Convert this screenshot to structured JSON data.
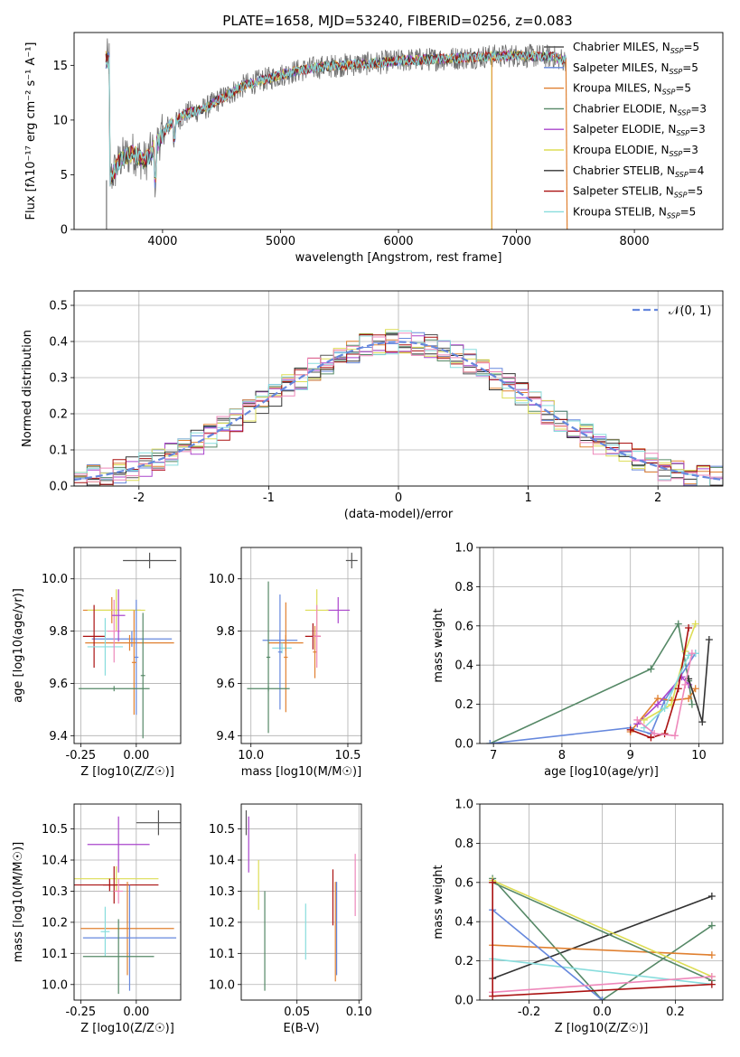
{
  "figure": {
    "title": "PLATE=1658, MJD=53240, FIBERID=0256, z=0.083"
  },
  "chart_data": [
    {
      "id": "spectrum",
      "type": "line",
      "xlabel": "wavelength [Angstrom, rest frame]",
      "ylabel": "Flux [fλ10⁻¹⁷ erg cm⁻² s⁻¹ A⁻¹]",
      "xlim": [
        3250,
        8750
      ],
      "ylim": [
        0,
        18
      ],
      "xticks": [
        4000,
        5000,
        6000,
        7000,
        8000
      ],
      "yticks": [
        0,
        5,
        10,
        15
      ],
      "grid": false,
      "legend_position": "top-right",
      "anchors": [
        [
          3550,
          4.5
        ],
        [
          3650,
          6.5
        ],
        [
          3750,
          7.0
        ],
        [
          3850,
          6.2
        ],
        [
          3950,
          7.8
        ],
        [
          4050,
          9.5
        ],
        [
          4200,
          10.6
        ],
        [
          4350,
          11.0
        ],
        [
          4500,
          12.0
        ],
        [
          4700,
          13.2
        ],
        [
          4900,
          13.8
        ],
        [
          5100,
          14.4
        ],
        [
          5300,
          14.8
        ],
        [
          5500,
          15.0
        ],
        [
          5800,
          15.2
        ],
        [
          6100,
          15.5
        ],
        [
          6400,
          15.6
        ],
        [
          6700,
          15.8
        ],
        [
          7000,
          15.9
        ],
        [
          7300,
          15.8
        ],
        [
          7400,
          15.5
        ]
      ],
      "series": [
        {
          "name": "Chabrier MILES, N_SSP=5",
          "color": "#555555",
          "width": 0.8
        },
        {
          "name": "Salpeter MILES, N_SSP=5",
          "color": "#6688dd",
          "width": 1.0
        },
        {
          "name": "Kroupa MILES, N_SSP=5",
          "color": "#e08030",
          "width": 1.0
        },
        {
          "name": "Chabrier ELODIE, N_SSP=3",
          "color": "#558866",
          "width": 1.0
        },
        {
          "name": "Salpeter ELODIE, N_SSP=3",
          "color": "#aa44cc",
          "width": 1.0
        },
        {
          "name": "Kroupa ELODIE, N_SSP=3",
          "color": "#dddd55",
          "width": 1.0
        },
        {
          "name": "Chabrier STELIB, N_SSP=4",
          "color": "#333333",
          "width": 1.0
        },
        {
          "name": "Salpeter STELIB, N_SSP=5",
          "color": "#aa1111",
          "width": 1.0
        },
        {
          "name": "Kroupa STELIB, N_SSP=5",
          "color": "#88dddd",
          "width": 1.2
        }
      ],
      "legend_items": [
        {
          "label": "Chabrier MILES, N",
          "sub": "SSP",
          "tail": "=5",
          "color": "#555555"
        },
        {
          "label": "Salpeter MILES, N",
          "sub": "SSP",
          "tail": "=5",
          "color": "#6688dd"
        },
        {
          "label": "Kroupa MILES, N",
          "sub": "SSP",
          "tail": "=5",
          "color": "#e08030"
        },
        {
          "label": "Chabrier ELODIE, N",
          "sub": "SSP",
          "tail": "=3",
          "color": "#558866"
        },
        {
          "label": "Salpeter ELODIE, N",
          "sub": "SSP",
          "tail": "=3",
          "color": "#aa44cc"
        },
        {
          "label": "Kroupa ELODIE, N",
          "sub": "SSP",
          "tail": "=3",
          "color": "#dddd55"
        },
        {
          "label": "Chabrier STELIB, N",
          "sub": "SSP",
          "tail": "=4",
          "color": "#333333"
        },
        {
          "label": "Salpeter STELIB, N",
          "sub": "SSP",
          "tail": "=5",
          "color": "#aa1111"
        },
        {
          "label": "Kroupa STELIB, N",
          "sub": "SSP",
          "tail": "=5",
          "color": "#88dddd"
        }
      ]
    },
    {
      "id": "residuals",
      "type": "step-histogram",
      "xlabel": "(data-model)/error",
      "ylabel": "Normed distribution",
      "xlim": [
        -2.5,
        2.5
      ],
      "ylim": [
        0,
        0.54
      ],
      "xticks": [
        -2,
        -1,
        0,
        1,
        2
      ],
      "yticks": [
        0.0,
        0.1,
        0.2,
        0.3,
        0.4,
        0.5
      ],
      "grid": true,
      "bin_width": 0.1,
      "reference_curve": {
        "name": "𝒩(0, 1)",
        "color": "#6688dd",
        "dash": "8,4"
      },
      "colors": [
        "#555555",
        "#6688dd",
        "#e08030",
        "#558866",
        "#aa44cc",
        "#dddd55",
        "#333333",
        "#aa1111",
        "#88dddd",
        "#ee88bb"
      ]
    },
    {
      "id": "age-vs-Z",
      "type": "errorbar",
      "xlabel": "Z [log10(Z/Z☉)]",
      "ylabel": "age [log10(age/yr)]",
      "xlim": [
        -0.28,
        0.2
      ],
      "ylim": [
        9.37,
        10.12
      ],
      "xticks": [
        -0.25,
        0.0
      ],
      "yticks": [
        9.4,
        9.6,
        9.8,
        10.0
      ],
      "points": [
        {
          "x": 0.06,
          "xe": 0.12,
          "y": 10.07,
          "ye": 0.03,
          "color": "#555555"
        },
        {
          "x": -0.11,
          "xe": 0.13,
          "y": 9.88,
          "ye": 0.05,
          "color": "#e08030"
        },
        {
          "x": -0.09,
          "xe": 0.13,
          "y": 9.88,
          "ye": 0.08,
          "color": "#dddd55"
        },
        {
          "x": -0.02,
          "xe": 0.18,
          "y": 9.77,
          "ye": 0.03,
          "color": "#6688dd"
        },
        {
          "x": -0.03,
          "xe": 0.2,
          "y": 9.755,
          "ye": 0.03,
          "color": "#e08030"
        },
        {
          "x": -0.19,
          "xe": 0.05,
          "y": 9.78,
          "ye": 0.12,
          "color": "#aa1111"
        },
        {
          "x": -0.14,
          "xe": 0.08,
          "y": 9.74,
          "ye": 0.11,
          "color": "#88dddd"
        },
        {
          "x": -0.1,
          "xe": 0.03,
          "y": 9.8,
          "ye": 0.12,
          "color": "#ee88bb"
        },
        {
          "x": -0.08,
          "xe": 0.03,
          "y": 9.86,
          "ye": 0.1,
          "color": "#aa44cc"
        },
        {
          "x": 0.0,
          "xe": 0.01,
          "y": 9.7,
          "ye": 0.22,
          "color": "#6688dd"
        },
        {
          "x": -0.01,
          "xe": 0.01,
          "y": 9.68,
          "ye": 0.2,
          "color": "#e08030"
        },
        {
          "x": -0.1,
          "xe": 0.16,
          "y": 9.58,
          "ye": 0.01,
          "color": "#558866"
        },
        {
          "x": 0.03,
          "xe": 0.01,
          "y": 9.63,
          "ye": 0.24,
          "color": "#558866"
        }
      ]
    },
    {
      "id": "age-vs-mass",
      "type": "errorbar",
      "xlabel": "mass [log10(M/M☉)]",
      "ylabel": "",
      "xlim": [
        9.95,
        10.57
      ],
      "ylim": [
        9.37,
        10.12
      ],
      "xticks": [
        10.0,
        10.5
      ],
      "yticks": [
        9.4,
        9.6,
        9.8,
        10.0
      ],
      "points": [
        {
          "x": 10.52,
          "xe": 0.03,
          "y": 10.07,
          "ye": 0.03,
          "color": "#555555"
        },
        {
          "x": 10.45,
          "xe": 0.06,
          "y": 9.88,
          "ye": 0.05,
          "color": "#aa44cc"
        },
        {
          "x": 10.34,
          "xe": 0.06,
          "y": 9.88,
          "ye": 0.08,
          "color": "#dddd55"
        },
        {
          "x": 10.15,
          "xe": 0.09,
          "y": 9.765,
          "ye": 0.03,
          "color": "#6688dd"
        },
        {
          "x": 10.18,
          "xe": 0.09,
          "y": 9.755,
          "ye": 0.03,
          "color": "#e08030"
        },
        {
          "x": 10.32,
          "xe": 0.04,
          "y": 9.78,
          "ye": 0.05,
          "color": "#aa1111"
        },
        {
          "x": 10.16,
          "xe": 0.05,
          "y": 9.735,
          "ye": 0.02,
          "color": "#88dddd"
        },
        {
          "x": 10.33,
          "xe": 0.01,
          "y": 9.72,
          "ye": 0.1,
          "color": "#e08030"
        },
        {
          "x": 10.34,
          "xe": 0.02,
          "y": 9.78,
          "ye": 0.12,
          "color": "#ee88bb"
        },
        {
          "x": 10.15,
          "xe": 0.01,
          "y": 9.72,
          "ye": 0.22,
          "color": "#6688dd"
        },
        {
          "x": 10.18,
          "xe": 0.01,
          "y": 9.7,
          "ye": 0.21,
          "color": "#e08030"
        },
        {
          "x": 10.09,
          "xe": 0.11,
          "y": 9.58,
          "ye": 0.01,
          "color": "#558866"
        },
        {
          "x": 10.09,
          "xe": 0.01,
          "y": 9.7,
          "ye": 0.29,
          "color": "#558866"
        }
      ]
    },
    {
      "id": "massweight-vs-age",
      "type": "line",
      "xlabel": "age [log10(age/yr)]",
      "ylabel": "mass weight",
      "xlim": [
        6.8,
        10.35
      ],
      "ylim": [
        0,
        1.0
      ],
      "xticks": [
        7,
        8,
        9,
        10
      ],
      "yticks": [
        0.0,
        0.2,
        0.4,
        0.6,
        0.8,
        1.0
      ],
      "grid": true,
      "series": [
        {
          "color": "#558866",
          "points": [
            [
              6.95,
              0.0
            ],
            [
              9.3,
              0.38
            ],
            [
              9.7,
              0.61
            ],
            [
              9.85,
              0.32
            ],
            [
              9.9,
              0.2
            ]
          ]
        },
        {
          "color": "#6688dd",
          "points": [
            [
              6.95,
              0.0
            ],
            [
              9.0,
              0.08
            ],
            [
              9.3,
              0.05
            ],
            [
              9.5,
              0.22
            ],
            [
              9.95,
              0.46
            ]
          ]
        },
        {
          "color": "#e08030",
          "points": [
            [
              9.0,
              0.06
            ],
            [
              9.4,
              0.23
            ],
            [
              9.6,
              0.22
            ],
            [
              9.85,
              0.23
            ],
            [
              9.95,
              0.28
            ]
          ]
        },
        {
          "color": "#aa44cc",
          "points": [
            [
              9.1,
              0.1
            ],
            [
              9.4,
              0.2
            ],
            [
              9.75,
              0.34
            ],
            [
              9.85,
              0.3
            ]
          ]
        },
        {
          "color": "#dddd55",
          "points": [
            [
              9.2,
              0.12
            ],
            [
              9.6,
              0.2
            ],
            [
              9.8,
              0.47
            ],
            [
              9.95,
              0.61
            ]
          ]
        },
        {
          "color": "#333333",
          "points": [
            [
              9.85,
              0.33
            ],
            [
              10.05,
              0.11
            ],
            [
              10.15,
              0.53
            ]
          ]
        },
        {
          "color": "#aa1111",
          "points": [
            [
              9.0,
              0.07
            ],
            [
              9.3,
              0.03
            ],
            [
              9.5,
              0.05
            ],
            [
              9.7,
              0.28
            ],
            [
              9.85,
              0.59
            ]
          ]
        },
        {
          "color": "#88dddd",
          "points": [
            [
              9.2,
              0.08
            ],
            [
              9.5,
              0.18
            ],
            [
              9.85,
              0.45
            ],
            [
              9.95,
              0.46
            ]
          ]
        },
        {
          "color": "#ee88bb",
          "points": [
            [
              9.1,
              0.12
            ],
            [
              9.35,
              0.05
            ],
            [
              9.65,
              0.04
            ],
            [
              9.8,
              0.3
            ],
            [
              9.9,
              0.46
            ]
          ]
        }
      ]
    },
    {
      "id": "mass-vs-Z",
      "type": "errorbar",
      "xlabel": "Z [log10(Z/Z☉)]",
      "ylabel": "mass [log10(M/M☉)]",
      "xlim": [
        -0.28,
        0.2
      ],
      "ylim": [
        9.95,
        10.58
      ],
      "xticks": [
        -0.25,
        0.0
      ],
      "yticks": [
        10.0,
        10.1,
        10.2,
        10.3,
        10.4,
        10.5
      ],
      "points": [
        {
          "x": 0.1,
          "xe": 0.1,
          "y": 10.52,
          "ye": 0.04,
          "color": "#555555"
        },
        {
          "x": -0.08,
          "xe": 0.14,
          "y": 10.45,
          "ye": 0.09,
          "color": "#aa44cc"
        },
        {
          "x": -0.09,
          "xe": 0.19,
          "y": 10.34,
          "ye": 0.04,
          "color": "#dddd55"
        },
        {
          "x": -0.1,
          "xe": 0.2,
          "y": 10.32,
          "ye": 0.06,
          "color": "#aa1111"
        },
        {
          "x": -0.08,
          "xe": 0.02,
          "y": 10.3,
          "ye": 0.04,
          "color": "#ee88bb"
        },
        {
          "x": -0.04,
          "xe": 0.21,
          "y": 10.18,
          "ye": 0.15,
          "color": "#e08030"
        },
        {
          "x": -0.03,
          "xe": 0.21,
          "y": 10.15,
          "ye": 0.17,
          "color": "#6688dd"
        },
        {
          "x": -0.14,
          "xe": 0.02,
          "y": 10.17,
          "ye": 0.08,
          "color": "#88dddd"
        },
        {
          "x": -0.08,
          "xe": 0.16,
          "y": 10.09,
          "ye": 0.12,
          "color": "#558866"
        },
        {
          "x": -0.12,
          "xe": 0.03,
          "y": 10.32,
          "ye": 0.02,
          "color": "#aa1111"
        }
      ]
    },
    {
      "id": "mass-vs-EBV",
      "type": "errorbar",
      "xlabel": "E(B-V)",
      "ylabel": "",
      "xlim": [
        0.005,
        0.102
      ],
      "ylim": [
        9.95,
        10.58
      ],
      "xticks": [
        0.05,
        0.1
      ],
      "yticks": [
        10.0,
        10.1,
        10.2,
        10.3,
        10.4,
        10.5
      ],
      "points": [
        {
          "x": 0.009,
          "xe": 0.0,
          "y": 10.52,
          "ye": 0.04,
          "color": "#555555"
        },
        {
          "x": 0.011,
          "xe": 0.0,
          "y": 10.45,
          "ye": 0.09,
          "color": "#aa44cc"
        },
        {
          "x": 0.019,
          "xe": 0.0,
          "y": 10.32,
          "ye": 0.08,
          "color": "#dddd55"
        },
        {
          "x": 0.024,
          "xe": 0.0,
          "y": 10.14,
          "ye": 0.16,
          "color": "#558866"
        },
        {
          "x": 0.057,
          "xe": 0.0,
          "y": 10.17,
          "ye": 0.09,
          "color": "#88dddd"
        },
        {
          "x": 0.079,
          "xe": 0.0,
          "y": 10.28,
          "ye": 0.09,
          "color": "#aa1111"
        },
        {
          "x": 0.081,
          "xe": 0.0,
          "y": 10.17,
          "ye": 0.16,
          "color": "#e08030"
        },
        {
          "x": 0.082,
          "xe": 0.0,
          "y": 10.18,
          "ye": 0.15,
          "color": "#6688dd"
        },
        {
          "x": 0.097,
          "xe": 0.0,
          "y": 10.32,
          "ye": 0.1,
          "color": "#ee88bb"
        }
      ]
    },
    {
      "id": "massweight-vs-Z",
      "type": "line",
      "xlabel": "Z [log10(Z/Z☉)]",
      "ylabel": "mass weight",
      "xlim": [
        -0.335,
        0.33
      ],
      "ylim": [
        0,
        1.0
      ],
      "xticks": [
        -0.2,
        0.0,
        0.2
      ],
      "yticks": [
        0.0,
        0.2,
        0.4,
        0.6,
        0.8,
        1.0
      ],
      "grid": true,
      "series": [
        {
          "color": "#333333",
          "points": [
            [
              -0.3,
              0.11
            ],
            [
              0.3,
              0.53
            ]
          ]
        },
        {
          "color": "#558866",
          "points": [
            [
              -0.3,
              0.62
            ],
            [
              0.0,
              0.0
            ],
            [
              0.3,
              0.38
            ]
          ]
        },
        {
          "color": "#e08030",
          "points": [
            [
              -0.3,
              0.28
            ],
            [
              0.3,
              0.23
            ]
          ]
        },
        {
          "color": "#dddd55",
          "points": [
            [
              -0.3,
              0.61
            ],
            [
              0.3,
              0.12
            ]
          ]
        },
        {
          "color": "#558866",
          "points": [
            [
              -0.3,
              0.6
            ],
            [
              0.3,
              0.1
            ]
          ]
        },
        {
          "color": "#88dddd",
          "points": [
            [
              -0.3,
              0.21
            ],
            [
              0.3,
              0.08
            ]
          ]
        },
        {
          "color": "#6688dd",
          "points": [
            [
              -0.3,
              0.46
            ],
            [
              0.0,
              0.0
            ]
          ]
        },
        {
          "color": "#ee88bb",
          "points": [
            [
              -0.3,
              0.04
            ],
            [
              0.3,
              0.12
            ]
          ]
        },
        {
          "color": "#aa1111",
          "points": [
            [
              -0.3,
              0.6
            ],
            [
              -0.3,
              0.02
            ],
            [
              0.3,
              0.08
            ]
          ]
        }
      ]
    }
  ]
}
